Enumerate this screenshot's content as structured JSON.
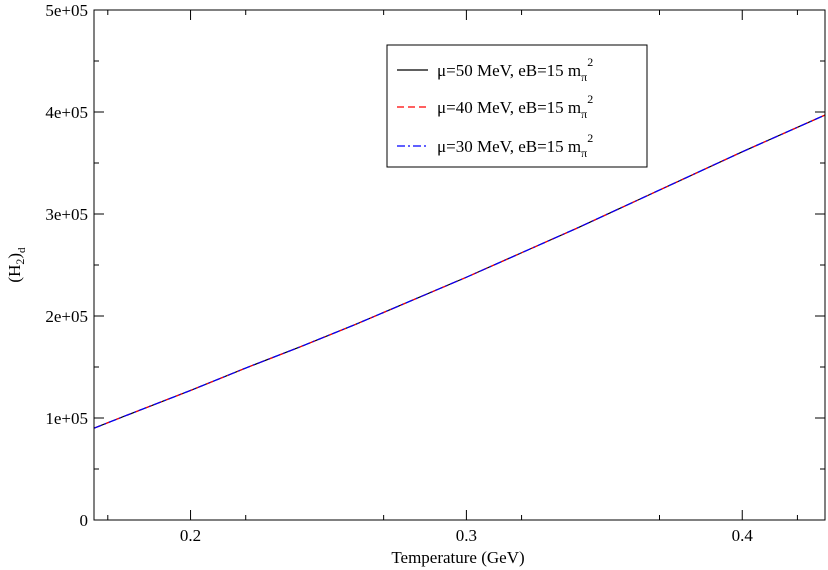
{
  "chart_data": {
    "type": "line",
    "xlabel": "Temperature (GeV)",
    "ylabel": {
      "main": "(H",
      "sub1": "2",
      "close": ")",
      "sub2": "d"
    },
    "xlim": [
      0.165,
      0.43
    ],
    "ylim": [
      0,
      500000
    ],
    "x_ticks": [
      {
        "value": 0.2,
        "label": "0.2"
      },
      {
        "value": 0.3,
        "label": "0.3"
      },
      {
        "value": 0.4,
        "label": "0.4"
      }
    ],
    "y_ticks": [
      {
        "value": 0,
        "label": "0"
      },
      {
        "value": 100000,
        "label": "1e+05"
      },
      {
        "value": 200000,
        "label": "2e+05"
      },
      {
        "value": 300000,
        "label": "3e+05"
      },
      {
        "value": 400000,
        "label": "4e+05"
      },
      {
        "value": 500000,
        "label": "5e+05"
      }
    ],
    "legend_position": "top-right",
    "x": [
      0.165,
      0.18,
      0.2,
      0.22,
      0.24,
      0.26,
      0.28,
      0.3,
      0.32,
      0.34,
      0.36,
      0.38,
      0.4,
      0.42,
      0.43
    ],
    "series": [
      {
        "name": {
          "text": "μ=50 MeV, eB=15 m",
          "sub": "π",
          "sup": "2"
        },
        "color": "#000000",
        "dash": "solid",
        "values": [
          90000,
          106000,
          127000,
          149000,
          170000,
          192000,
          215000,
          238000,
          262000,
          286000,
          311000,
          336000,
          361000,
          385000,
          397000
        ]
      },
      {
        "name": {
          "text": "μ=40 MeV, eB=15 m",
          "sub": "π",
          "sup": "2"
        },
        "color": "#ff0000",
        "dash": "dashed",
        "values": [
          90000,
          106000,
          127000,
          149000,
          170000,
          192000,
          215000,
          238000,
          262000,
          286000,
          311000,
          336000,
          361000,
          385000,
          397000
        ]
      },
      {
        "name": {
          "text": "μ=30 MeV, eB=15 m",
          "sub": "π",
          "sup": "2"
        },
        "color": "#0000ff",
        "dash": "dashdot",
        "values": [
          90000,
          106000,
          127000,
          149000,
          170000,
          192000,
          215000,
          238000,
          262000,
          286000,
          311000,
          336000,
          361000,
          385000,
          397000
        ]
      }
    ]
  }
}
